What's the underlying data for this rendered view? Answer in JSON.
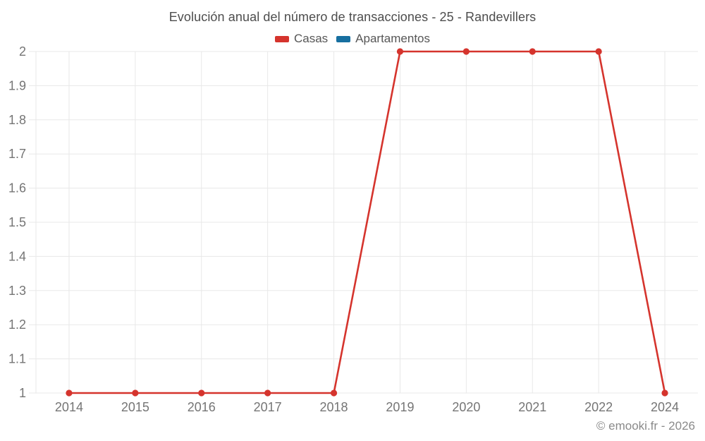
{
  "title": "Evolución anual del número de transacciones - 25 - Randevillers",
  "footer": "© emooki.fr - 2026",
  "colors": {
    "casas": "#d5342d",
    "apartamentos": "#176fa0",
    "grid": "#e8e8e8",
    "axis_label": "#757575",
    "title_text": "#4d4d4d"
  },
  "legend": {
    "items": [
      {
        "label": "Casas",
        "color": "#d5342d"
      },
      {
        "label": "Apartamentos",
        "color": "#176fa0"
      }
    ]
  },
  "chart_data": {
    "type": "line",
    "title": "Evolución anual del número de transacciones - 25 - Randevillers",
    "categories": [
      "2014",
      "2015",
      "2016",
      "2017",
      "2018",
      "2019",
      "2020",
      "2021",
      "2022",
      "2024"
    ],
    "series": [
      {
        "name": "Casas",
        "color": "#d5342d",
        "values": [
          1,
          1,
          1,
          1,
          1,
          2,
          2,
          2,
          2,
          1
        ]
      },
      {
        "name": "Apartamentos",
        "color": "#176fa0",
        "values": []
      }
    ],
    "xlabel": "",
    "ylabel": "",
    "ylim": [
      1,
      2
    ],
    "yticks": [
      1,
      1.1,
      1.2,
      1.3,
      1.4,
      1.5,
      1.6,
      1.7,
      1.8,
      1.9,
      2
    ],
    "ytick_labels": [
      "1",
      "1.1",
      "1.2",
      "1.3",
      "1.4",
      "1.5",
      "1.6",
      "1.7",
      "1.8",
      "1.9",
      "2"
    ],
    "grid": true,
    "legend_position": "top"
  }
}
